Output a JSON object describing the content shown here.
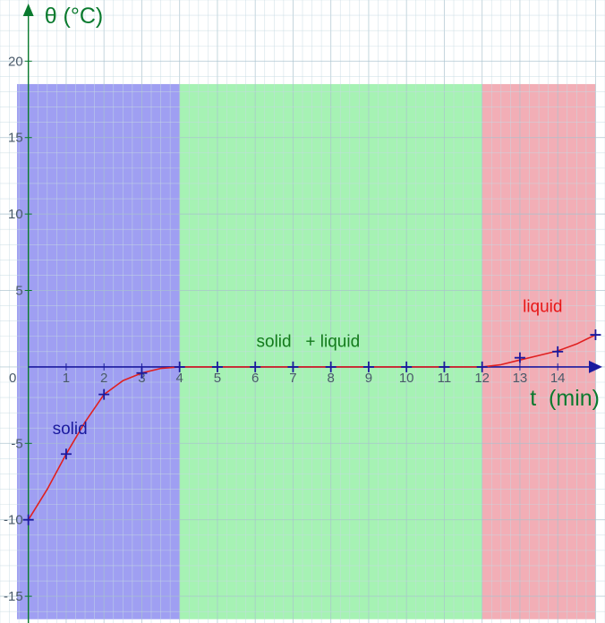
{
  "chart_data": {
    "type": "scatter",
    "y_axis_title": "θ (°C)",
    "x_axis_title": "t  (min)",
    "xlim": [
      -0.75,
      15.25
    ],
    "ylim": [
      -16.75,
      24
    ],
    "x_ticks": [
      1,
      2,
      3,
      4,
      5,
      6,
      7,
      8,
      9,
      10,
      11,
      12,
      13,
      14
    ],
    "y_ticks": [
      -15,
      -10,
      -5,
      5,
      10,
      15,
      20
    ],
    "origin_label": "0",
    "grid": true,
    "regions": [
      {
        "label": "solid",
        "x_start": -0.3,
        "x_end": 4.0,
        "y_start": -16.5,
        "y_end": 18.5,
        "color": "#9f9ff2"
      },
      {
        "label": "solid   + liquid",
        "x_start": 4.0,
        "x_end": 12.0,
        "y_start": -16.5,
        "y_end": 18.5,
        "color": "#a6f2b4"
      },
      {
        "label": "liquid",
        "x_start": 12.0,
        "x_end": 15.0,
        "y_start": -16.5,
        "y_end": 18.5,
        "color": "#f2aeb6"
      }
    ],
    "region_label_positions": [
      {
        "x": 1.1,
        "y": -4.4,
        "color": "#1a1a9e"
      },
      {
        "x": 7.4,
        "y": 1.3,
        "color": "#137a1c"
      },
      {
        "x": 13.6,
        "y": 3.6,
        "color": "#e81616"
      }
    ],
    "series": [
      {
        "x": [
          0,
          1,
          2,
          3,
          4,
          5,
          6,
          7,
          8,
          9,
          10,
          11,
          12,
          13,
          14,
          15
        ],
        "y": [
          -10,
          -5.7,
          -1.8,
          -0.4,
          0,
          0,
          0,
          0,
          0,
          0,
          0,
          0,
          0,
          0.6,
          1,
          2.1
        ],
        "marker": "+",
        "marker_color": "#1a1a9e"
      }
    ],
    "fit_curve": {
      "color": "#e02020",
      "x": [
        0,
        0.5,
        1,
        1.5,
        2,
        2.5,
        3,
        3.5,
        4,
        5,
        6,
        7,
        8,
        9,
        10,
        11,
        12,
        12.5,
        13,
        13.5,
        14,
        14.5,
        15
      ],
      "y": [
        -10,
        -8.0,
        -5.7,
        -3.6,
        -1.8,
        -0.9,
        -0.4,
        -0.1,
        0,
        0,
        0,
        0,
        0,
        0,
        0,
        0,
        0,
        0.15,
        0.45,
        0.75,
        1.05,
        1.5,
        2.1
      ]
    },
    "colors": {
      "axis": "#1a1a9e",
      "y_axis_title": "#0a7a2e",
      "grid_minor": "#c6dae3",
      "grid_major": "#a8c2ce"
    }
  }
}
